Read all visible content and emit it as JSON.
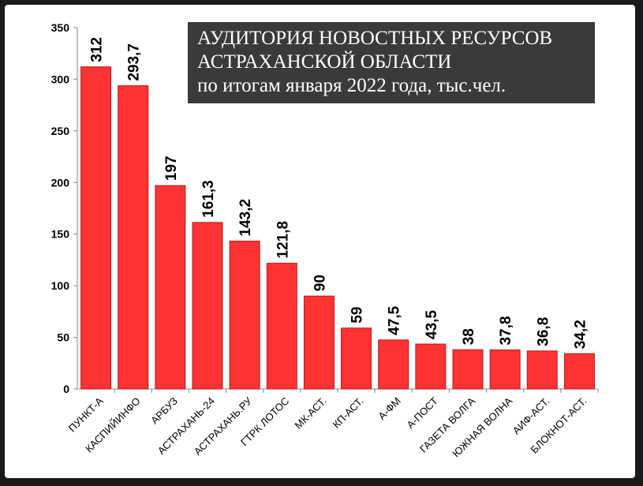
{
  "chart_data": {
    "type": "bar",
    "title_line1": "АУДИТОРИЯ НОВОСТНЫХ РЕСУРСОВ",
    "title_line2": "АСТРАХАНСКОЙ ОБЛАСТИ",
    "subtitle": "по итогам января 2022 года, тыс.чел.",
    "categories": [
      "ПУНКТ-А",
      "КАСПИЙИНФО",
      "АРБУЗ",
      "АСТРАХАНЬ-24",
      "АСТРАХАНЬ.РУ",
      "ГТРК ЛОТОС",
      "МК-АСТ.",
      "КП-АСТ.",
      "А-ФМ",
      "А-ПОСТ",
      "ГАЗЕТА ВОЛГА",
      "ЮЖНАЯ ВОЛНА",
      "АИФ-АСТ.",
      "БЛОКНОТ-АСТ."
    ],
    "values": [
      312,
      293.7,
      197,
      161.3,
      143.2,
      121.8,
      90,
      59,
      47.5,
      43.5,
      38,
      37.8,
      36.8,
      34.2
    ],
    "value_labels": [
      "312",
      "293,7",
      "197",
      "161,3",
      "143,2",
      "121,8",
      "90",
      "59",
      "47,5",
      "43,5",
      "38",
      "37,8",
      "36,8",
      "34,2"
    ],
    "yticks": [
      "0",
      "50",
      "100",
      "150",
      "200",
      "250",
      "300",
      "350"
    ],
    "ylim": [
      0,
      350
    ],
    "bar_color": "#ff3333",
    "bar_edge_color": "#b31a1a",
    "grid": false,
    "legend": "none"
  }
}
